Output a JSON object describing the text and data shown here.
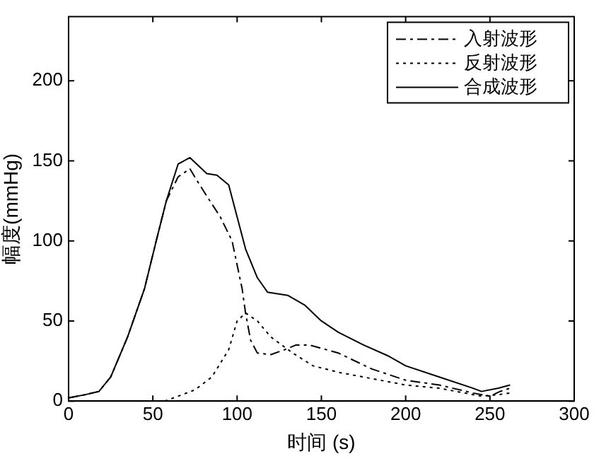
{
  "chart_data": {
    "type": "line",
    "xlabel": "时间 (s)",
    "ylabel": "幅度(mmHg)",
    "xlim": [
      0,
      300
    ],
    "xticks": [
      0,
      50,
      100,
      150,
      200,
      250,
      300
    ],
    "ylim": [
      0,
      240
    ],
    "yticks": [
      0,
      50,
      100,
      150,
      200
    ],
    "grid": false,
    "legend": "top right",
    "marker": "none",
    "series": [
      {
        "name": "入射波形",
        "color": "#000000",
        "line_style": "dashdot",
        "x": [
          0,
          10,
          18,
          25,
          35,
          45,
          52,
          58,
          65,
          72,
          76,
          82,
          90,
          97,
          100,
          103,
          105,
          108,
          112,
          120,
          128,
          135,
          143,
          160,
          180,
          200,
          220,
          240,
          250,
          256,
          262
        ],
        "values": [
          2,
          4,
          6,
          15,
          40,
          70,
          100,
          125,
          140,
          145,
          138,
          128,
          115,
          100,
          85,
          70,
          55,
          38,
          30,
          29,
          32,
          35,
          35,
          30,
          20,
          13,
          10,
          5,
          3,
          6,
          8
        ]
      },
      {
        "name": "反射波形",
        "color": "#000000",
        "line_style": "dotted",
        "x": [
          57,
          65,
          75,
          85,
          95,
          100,
          105,
          112,
          120,
          133,
          145,
          160,
          180,
          200,
          220,
          235,
          245,
          255,
          262
        ],
        "values": [
          0,
          3,
          7,
          15,
          32,
          50,
          55,
          50,
          40,
          30,
          22,
          18,
          14,
          10,
          8,
          5,
          3,
          4,
          5
        ]
      },
      {
        "name": "合成波形",
        "color": "#000000",
        "line_style": "solid",
        "x": [
          0,
          10,
          18,
          25,
          35,
          45,
          52,
          58,
          65,
          72,
          76,
          82,
          88,
          95,
          100,
          105,
          112,
          118,
          130,
          140,
          150,
          160,
          175,
          190,
          200,
          220,
          240,
          245,
          255,
          262
        ],
        "values": [
          2,
          4,
          6,
          15,
          40,
          70,
          100,
          125,
          148,
          152,
          148,
          142,
          141,
          135,
          115,
          95,
          77,
          68,
          66,
          60,
          50,
          43,
          35,
          28,
          22,
          15,
          8,
          6,
          8,
          10
        ]
      }
    ]
  }
}
